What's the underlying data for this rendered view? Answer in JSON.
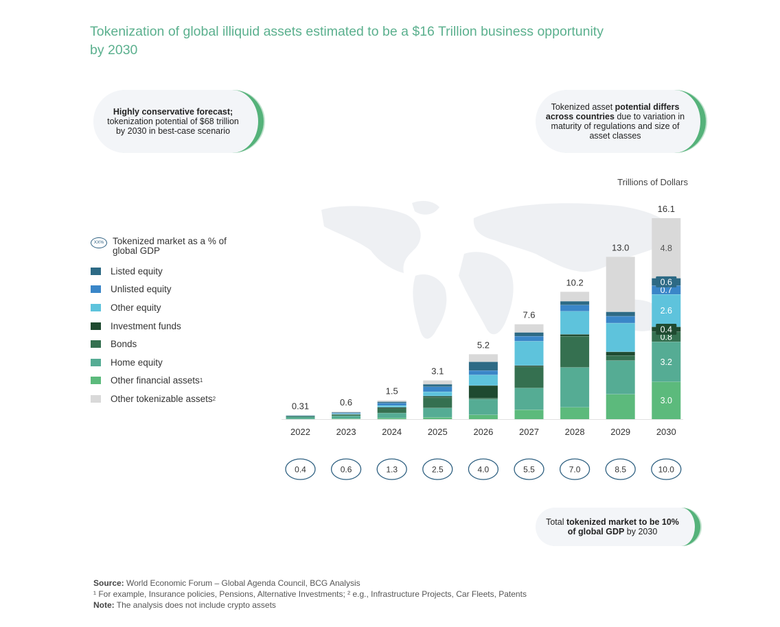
{
  "title": "Tokenization of global illiquid assets estimated to be a $16 Trillion business opportunity by 2030",
  "callouts": {
    "left": {
      "bold": "Highly conservative forecast;",
      "text": "tokenization potential of $68 trillion by 2030 in best-case scenario"
    },
    "right": {
      "t1": "Tokenized asset ",
      "b1": "potential differs across countries",
      "t2": " due to variation in maturity of regulations and size of asset classes"
    },
    "bottom": {
      "t1": "Total ",
      "b1": "tokenized market to be 10% of global GDP",
      "t2": " by 2030"
    }
  },
  "legend": {
    "gdp_oval": "XX%",
    "gdp_label": "Tokenized market as a % of global GDP",
    "items": [
      {
        "label": "Listed equity",
        "sup": "",
        "color": "#2d6a85"
      },
      {
        "label": "Unlisted equity",
        "sup": "",
        "color": "#3a86c8"
      },
      {
        "label": "Other equity",
        "sup": "",
        "color": "#5ec3dc"
      },
      {
        "label": "Investment funds",
        "sup": "",
        "color": "#1f4a30"
      },
      {
        "label": "Bonds",
        "sup": "",
        "color": "#357050"
      },
      {
        "label": "Home equity",
        "sup": "",
        "color": "#55ac94"
      },
      {
        "label": "Other financial assets",
        "sup": "1",
        "color": "#5cba7c"
      },
      {
        "label": "Other tokenizable assets",
        "sup": "2",
        "color": "#d9d9d9"
      }
    ]
  },
  "chart_data": {
    "type": "bar",
    "stacked": true,
    "units": "Trillions of Dollars",
    "ylim": [
      0,
      16.1
    ],
    "categories": [
      "2022",
      "2023",
      "2024",
      "2025",
      "2026",
      "2027",
      "2028",
      "2029",
      "2030"
    ],
    "totals": [
      "0.31",
      "0.6",
      "1.5",
      "3.1",
      "5.2",
      "7.6",
      "10.2",
      "13.0",
      "16.1"
    ],
    "gdp_share": [
      "0.4",
      "0.6",
      "1.3",
      "2.5",
      "4.0",
      "5.5",
      "7.0",
      "8.5",
      "10.0"
    ],
    "series": [
      {
        "name": "Other financial assets",
        "color": "#5cba7c",
        "values": [
          0.02,
          0.05,
          0.1,
          0.15,
          0.35,
          0.75,
          0.95,
          2.0,
          3.0
        ],
        "labels": [
          "",
          "",
          "",
          "",
          "",
          "",
          "",
          "",
          "3.0"
        ]
      },
      {
        "name": "Home equity",
        "color": "#55ac94",
        "values": [
          0.16,
          0.22,
          0.4,
          0.75,
          1.25,
          1.75,
          3.2,
          2.7,
          3.2
        ],
        "labels": [
          "",
          "",
          "",
          "",
          "",
          "",
          "",
          "",
          "3.2"
        ]
      },
      {
        "name": "Bonds",
        "color": "#357050",
        "values": [
          0.04,
          0.1,
          0.35,
          0.85,
          0.1,
          1.7,
          2.5,
          0.4,
          0.8
        ],
        "labels": [
          "",
          "",
          "",
          "",
          "",
          "",
          "",
          "",
          "0.8"
        ]
      },
      {
        "name": "Investment funds",
        "color": "#1f4a30",
        "values": [
          0.02,
          0.03,
          0.1,
          0.1,
          1.0,
          0.1,
          0.15,
          0.3,
          0.4
        ],
        "labels": [
          "",
          "",
          "",
          "",
          "",
          "",
          "",
          "",
          "0.4"
        ]
      },
      {
        "name": "Other equity",
        "color": "#5ec3dc",
        "values": [
          0.03,
          0.05,
          0.15,
          0.35,
          0.85,
          1.95,
          1.85,
          2.3,
          2.6
        ],
        "labels": [
          "",
          "",
          "",
          "",
          "",
          "",
          "",
          "",
          "2.6"
        ]
      },
      {
        "name": "Unlisted equity",
        "color": "#3a86c8",
        "values": [
          0.02,
          0.05,
          0.2,
          0.4,
          0.35,
          0.4,
          0.5,
          0.55,
          0.7
        ],
        "labels": [
          "",
          "",
          "",
          "",
          "",
          "",
          "",
          "",
          "0.7"
        ]
      },
      {
        "name": "Listed equity",
        "color": "#2d6a85",
        "values": [
          0.01,
          0.05,
          0.1,
          0.2,
          0.7,
          0.3,
          0.3,
          0.35,
          0.6
        ],
        "labels": [
          "",
          "",
          "",
          "",
          "",
          "",
          "",
          "",
          "0.6"
        ]
      },
      {
        "name": "Other tokenizable assets",
        "color": "#d9d9d9",
        "values": [
          0.01,
          0.05,
          0.1,
          0.3,
          0.6,
          0.65,
          0.75,
          4.4,
          4.8
        ],
        "labels": [
          "",
          "",
          "",
          "",
          "",
          "",
          "",
          "",
          "4.8"
        ]
      }
    ]
  },
  "footer": {
    "source_label": "Source:",
    "source_text": " World Economic Forum – Global Agenda Council, BCG Analysis",
    "footnote": "¹ For example, Insurance policies, Pensions, Alternative Investments; ² e.g., Infrastructure Projects, Car Fleets, Patents",
    "note_label": "Note:",
    "note_text": " The analysis does not include crypto assets"
  }
}
